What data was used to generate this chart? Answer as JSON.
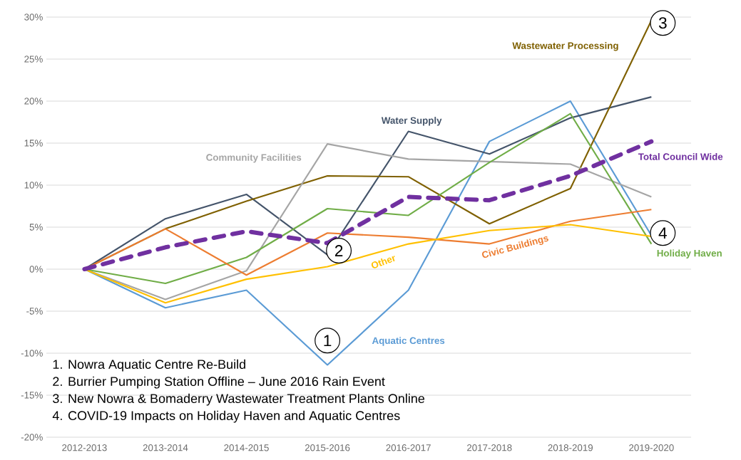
{
  "chart_data": {
    "type": "line",
    "categories": [
      "2012-2013",
      "2013-2014",
      "2014-2015",
      "2015-2016",
      "2016-2017",
      "2017-2018",
      "2018-2019",
      "2019-2020"
    ],
    "series": [
      {
        "name": "Aquatic Centres",
        "color": "#5b9bd5",
        "line_style": "solid",
        "values": [
          0,
          -4.6,
          -2.5,
          -11.4,
          -2.5,
          15.2,
          20.0,
          4.0
        ]
      },
      {
        "name": "Water Supply",
        "color": "#44546a",
        "line_style": "solid",
        "values": [
          0,
          6.0,
          8.9,
          1.7,
          16.4,
          13.7,
          18.0,
          20.5
        ]
      },
      {
        "name": "Wastewater Processing",
        "color": "#7f6000",
        "line_style": "solid",
        "values": [
          0,
          4.8,
          8.1,
          11.1,
          11.0,
          5.4,
          9.6,
          29.6
        ]
      },
      {
        "name": "Community Facilities",
        "color": "#a5a5a5",
        "line_style": "solid",
        "values": [
          0,
          -3.6,
          -0.2,
          14.9,
          13.1,
          12.8,
          12.5,
          8.6
        ]
      },
      {
        "name": "Holiday Haven",
        "color": "#70ad47",
        "line_style": "solid",
        "values": [
          0,
          -1.7,
          1.4,
          7.2,
          6.4,
          12.7,
          18.5,
          3.0
        ]
      },
      {
        "name": "Civic Buildings",
        "color": "#ed7d31",
        "line_style": "solid",
        "values": [
          0,
          4.8,
          -0.7,
          4.3,
          3.8,
          3.0,
          5.7,
          7.1
        ]
      },
      {
        "name": "Other",
        "color": "#ffc000",
        "line_style": "solid",
        "values": [
          0,
          -4.0,
          -1.2,
          0.3,
          3.0,
          4.6,
          5.3,
          3.9
        ]
      },
      {
        "name": "Total Council Wide",
        "color": "#7030a0",
        "line_style": "dashed",
        "values": [
          0,
          2.6,
          4.5,
          3.1,
          8.6,
          8.2,
          11.1,
          15.2
        ]
      }
    ],
    "ylim": [
      -20,
      30
    ],
    "yticks": [
      {
        "value": -20,
        "label": "-20%"
      },
      {
        "value": -15,
        "label": "-15%"
      },
      {
        "value": -10,
        "label": "-10%"
      },
      {
        "value": -5,
        "label": "-5%"
      },
      {
        "value": 0,
        "label": "0%"
      },
      {
        "value": 5,
        "label": "5%"
      },
      {
        "value": 10,
        "label": "10%"
      },
      {
        "value": 15,
        "label": "15%"
      },
      {
        "value": 20,
        "label": "20%"
      },
      {
        "value": 25,
        "label": "25%"
      },
      {
        "value": 30,
        "label": "30%"
      }
    ],
    "grid": "y",
    "legend": false,
    "marker": "none",
    "annotations": [
      {
        "text": "1",
        "x": "2015-2016",
        "y": -8.5
      },
      {
        "text": "2",
        "x": "2015-2016",
        "y": 2.2
      },
      {
        "text": "3",
        "x": "2019-2020",
        "y": 29.3
      },
      {
        "text": "4",
        "x": "2019-2020",
        "y": 4.3
      },
      "1. Nowra Aquatic Centre Re-Build",
      "2. Burrier Pumping Station Offline – June 2016 Rain Event",
      "3. New Nowra & Bomaderry Wastewater Treatment Plants Online",
      "4. COVID-19 Impacts on Holiday Haven and Aquatic Centres"
    ]
  }
}
